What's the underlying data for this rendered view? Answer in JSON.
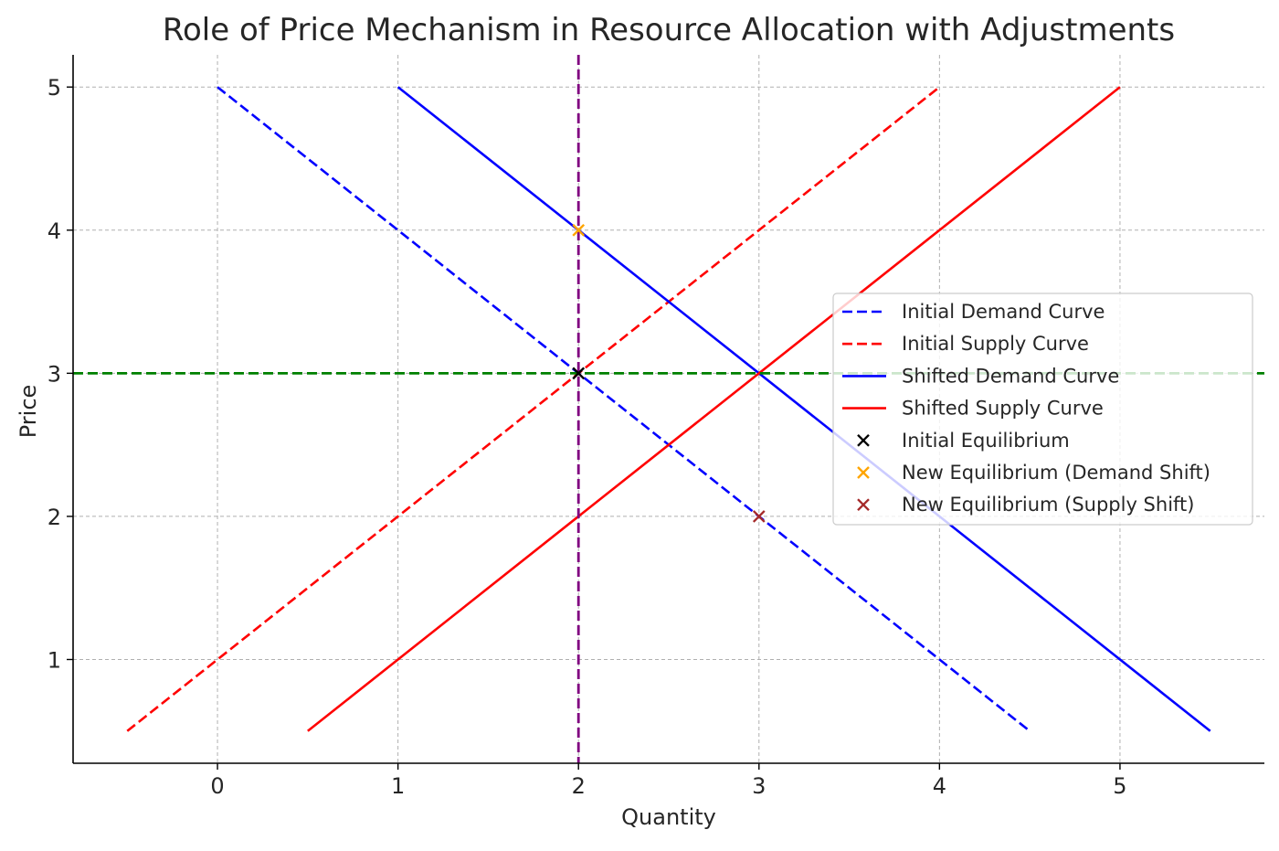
{
  "chart_data": {
    "type": "line",
    "title": "Role of Price Mechanism in Resource Allocation with Adjustments",
    "xlabel": "Quantity",
    "ylabel": "Price",
    "xlim": [
      -0.8,
      5.8
    ],
    "ylim": [
      0.275,
      5.225
    ],
    "xticks": [
      0,
      1,
      2,
      3,
      4,
      5
    ],
    "yticks": [
      1,
      2,
      3,
      4,
      5
    ],
    "xtick_labels": [
      "0",
      "1",
      "2",
      "3",
      "4",
      "5"
    ],
    "ytick_labels": [
      "1",
      "2",
      "3",
      "4",
      "5"
    ],
    "grid": true,
    "legend_position": "center-right",
    "series": [
      {
        "name": "Initial Demand Curve",
        "style": "dashed",
        "color": "#0000ff",
        "x": [
          0,
          4.5
        ],
        "y": [
          5,
          0.5
        ]
      },
      {
        "name": "Initial Supply Curve",
        "style": "dashed",
        "color": "#ff0000",
        "x": [
          -0.5,
          4
        ],
        "y": [
          0.5,
          5
        ]
      },
      {
        "name": "Shifted Demand Curve",
        "style": "solid",
        "color": "#0000ff",
        "x": [
          1,
          5.5
        ],
        "y": [
          5,
          0.5
        ]
      },
      {
        "name": "Shifted Supply Curve",
        "style": "solid",
        "color": "#ff0000",
        "x": [
          0.5,
          5
        ],
        "y": [
          0.5,
          5
        ]
      }
    ],
    "points": [
      {
        "name": "Initial Equilibrium",
        "color": "#000000",
        "x": 2,
        "y": 3
      },
      {
        "name": "New Equilibrium (Demand Shift)",
        "color": "#ffa500",
        "x": 2,
        "y": 4
      },
      {
        "name": "New Equilibrium (Supply Shift)",
        "color": "#a52a2a",
        "x": 3,
        "y": 2
      }
    ],
    "reference_lines": [
      {
        "orientation": "horizontal",
        "value": 3,
        "color": "#008000",
        "style": "dashed"
      },
      {
        "orientation": "vertical",
        "value": 2,
        "color": "#800080",
        "style": "dashed"
      }
    ]
  }
}
